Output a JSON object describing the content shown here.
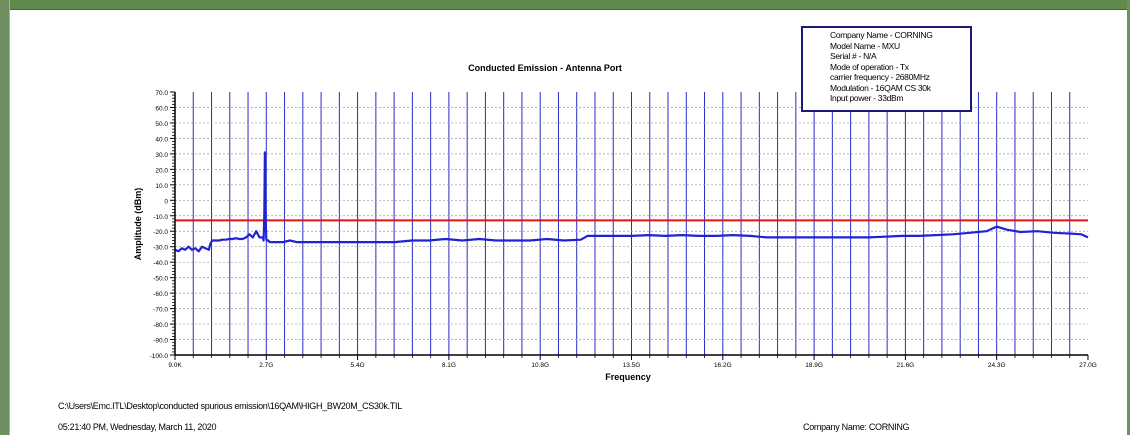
{
  "footer": {
    "file_path": "C:\\Users\\Emc.ITL\\Desktop\\conducted spurious emission\\16QAM\\HIGH_BW20M_CS30k.TIL",
    "timestamp": "05:21:40 PM, Wednesday, March 11, 2020",
    "company": "Company Name: CORNING"
  },
  "info_box": {
    "lines": [
      "Company Name - CORNING",
      "Model Name - MXU",
      "Serial # - N/A",
      "Mode of operation - Tx",
      "carrier frequency - 2680MHz",
      "Modulation - 16QAM CS 30k",
      "Input power - 33dBm"
    ]
  },
  "colors": {
    "trace": "#1f23d4",
    "limit": "#e01515",
    "grid": "#2a2ac8",
    "frame": "#5f8a4c"
  },
  "chart_data": {
    "type": "line",
    "title": "Conducted Emission - Antenna Port",
    "xlabel": "Frequency",
    "ylabel": "Amplitude (dBm)",
    "x_unit": "GHz",
    "xlim": [
      9e-06,
      27.0
    ],
    "ylim": [
      -100,
      70
    ],
    "x_tick_labels": [
      "9.0K",
      "2.7G",
      "5.4G",
      "8.1G",
      "10.8G",
      "13.5G",
      "16.2G",
      "18.9G",
      "21.6G",
      "24.3G",
      "27.0G"
    ],
    "y_tick_labels": [
      "70.0",
      "60.0",
      "50.0",
      "40.0",
      "30.0",
      "20.0",
      "10.0",
      "0",
      "-10.0",
      "-20.0",
      "-30.0",
      "-40.0",
      "-50.0",
      "-60.0",
      "-70.0",
      "-80.0",
      "-90.0",
      "-100.0"
    ],
    "grid": true,
    "limit_line": {
      "value": -13
    },
    "series": [
      {
        "x": [
          0.0,
          0.1,
          0.2,
          0.3,
          0.4,
          0.5,
          0.6,
          0.7,
          0.8,
          0.9,
          1.0,
          1.05,
          1.1,
          1.2,
          1.3,
          1.4,
          1.5,
          1.6,
          1.7,
          1.8,
          1.9,
          2.0,
          2.1,
          2.2,
          2.3,
          2.4,
          2.5,
          2.6,
          2.62,
          2.64,
          2.66,
          2.68,
          2.7,
          2.72,
          2.74,
          2.76,
          2.8,
          3.0,
          3.2,
          3.4,
          3.6,
          3.8,
          4.0,
          4.3,
          4.6,
          5.0,
          5.4,
          6.0,
          6.5,
          7.0,
          7.5,
          8.0,
          8.5,
          9.0,
          9.5,
          10.0,
          10.5,
          11.0,
          11.5,
          12.0,
          12.2,
          12.5,
          13.0,
          13.5,
          14.0,
          14.5,
          15.0,
          15.5,
          16.0,
          16.5,
          17.0,
          17.5,
          18.0,
          18.5,
          19.0,
          19.5,
          20.0,
          20.5,
          21.0,
          21.5,
          22.0,
          22.5,
          23.0,
          23.5,
          24.0,
          24.3,
          24.6,
          25.0,
          25.5,
          26.0,
          26.5,
          26.8,
          27.0
        ],
        "y": [
          -32,
          -33,
          -31,
          -32,
          -30,
          -32,
          -31,
          -33,
          -30,
          -31,
          -32,
          -28,
          -26,
          -26,
          -26,
          -25.5,
          -25.5,
          -25,
          -25,
          -24.5,
          -25,
          -25,
          -24,
          -22,
          -24,
          -20,
          -24,
          -24,
          -26,
          -10,
          31,
          -10,
          -25,
          -26,
          -26,
          -26,
          -27,
          -27,
          -27,
          -26,
          -27,
          -27,
          -27,
          -27,
          -27,
          -27,
          -27,
          -27,
          -27,
          -26,
          -26,
          -25,
          -26,
          -25,
          -26,
          -26,
          -26,
          -25,
          -26,
          -25.5,
          -23,
          -23,
          -23,
          -23,
          -22.5,
          -23,
          -22.5,
          -23,
          -23,
          -22.5,
          -23,
          -24,
          -24,
          -24,
          -24,
          -24,
          -24,
          -24,
          -23.5,
          -23,
          -23,
          -22.5,
          -22,
          -21,
          -20,
          -17,
          -19,
          -20.5,
          -20,
          -21,
          -21.5,
          -22,
          -24
        ]
      }
    ]
  }
}
